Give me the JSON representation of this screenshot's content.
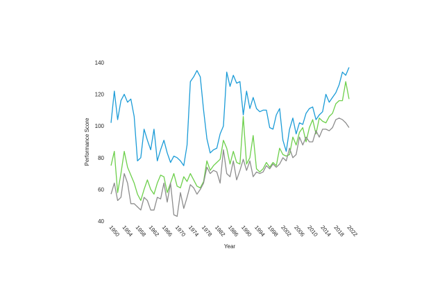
{
  "chart_data": {
    "type": "line",
    "x_label": "Year",
    "y_label": "Performance Score",
    "x": [
      1950,
      1951,
      1952,
      1953,
      1954,
      1955,
      1956,
      1957,
      1958,
      1959,
      1960,
      1961,
      1962,
      1963,
      1964,
      1965,
      1966,
      1967,
      1968,
      1969,
      1970,
      1971,
      1972,
      1973,
      1974,
      1975,
      1976,
      1977,
      1978,
      1979,
      1980,
      1981,
      1982,
      1983,
      1984,
      1985,
      1986,
      1987,
      1988,
      1989,
      1990,
      1991,
      1992,
      1993,
      1994,
      1995,
      1996,
      1997,
      1998,
      1999,
      2000,
      2001,
      2002,
      2003,
      2004,
      2005,
      2006,
      2007,
      2008,
      2009,
      2010,
      2011,
      2012,
      2013,
      2014,
      2015,
      2016,
      2017,
      2018,
      2019,
      2020,
      2021,
      2022
    ],
    "xlim": [
      1950,
      2022
    ],
    "xticks": [
      1950,
      1954,
      1958,
      1962,
      1966,
      1970,
      1974,
      1978,
      1982,
      1986,
      1990,
      1994,
      1998,
      2002,
      2006,
      2010,
      2014,
      2018,
      2022
    ],
    "ylim": [
      40,
      140
    ],
    "yticks": [
      40,
      60,
      80,
      100,
      120,
      140
    ],
    "grid": false,
    "series": [
      {
        "color": "#1a9bd7",
        "values": [
          102,
          122,
          104,
          116,
          120,
          115,
          117,
          106,
          78,
          80,
          98,
          91,
          85,
          98,
          78,
          85,
          91,
          83,
          77,
          81,
          80,
          78,
          75,
          88,
          128,
          131,
          135,
          131,
          110,
          92,
          83,
          85,
          86,
          95,
          100,
          134,
          125,
          132,
          127,
          128,
          107,
          122,
          111,
          118,
          111,
          109,
          110,
          110,
          99,
          98,
          107,
          111,
          91,
          84,
          98,
          105,
          95,
          102,
          101,
          108,
          111,
          112,
          104,
          107,
          109,
          120,
          115,
          118,
          121,
          126,
          134,
          132,
          137
        ]
      },
      {
        "color": "#6ccf4a",
        "values": [
          75,
          84,
          58,
          70,
          84,
          74,
          69,
          64,
          57,
          53,
          60,
          66,
          60,
          57,
          64,
          69,
          68,
          58,
          64,
          70,
          62,
          61,
          68,
          65,
          70,
          66,
          62,
          61,
          65,
          78,
          72,
          75,
          77,
          79,
          91,
          86,
          76,
          84,
          77,
          76,
          106,
          76,
          80,
          94,
          73,
          71,
          73,
          77,
          74,
          77,
          75,
          86,
          82,
          81,
          82,
          93,
          88,
          96,
          99,
          90,
          99,
          104,
          95,
          105,
          103,
          102,
          106,
          108,
          114,
          116,
          116,
          128,
          117
        ]
      },
      {
        "color": "#8c8c8c",
        "values": [
          57,
          64,
          53,
          55,
          70,
          64,
          51,
          51,
          49,
          47,
          55,
          53,
          47,
          47,
          55,
          54,
          64,
          52,
          64,
          44,
          43,
          58,
          48,
          55,
          63,
          61,
          57,
          60,
          64,
          74,
          70,
          72,
          71,
          64,
          85,
          70,
          68,
          78,
          66,
          72,
          79,
          72,
          78,
          68,
          71,
          70,
          71,
          75,
          73,
          76,
          74,
          76,
          80,
          78,
          86,
          80,
          82,
          93,
          88,
          93,
          90,
          90,
          97,
          93,
          98,
          98,
          97,
          99,
          104,
          105,
          104,
          102,
          99
        ]
      }
    ]
  }
}
